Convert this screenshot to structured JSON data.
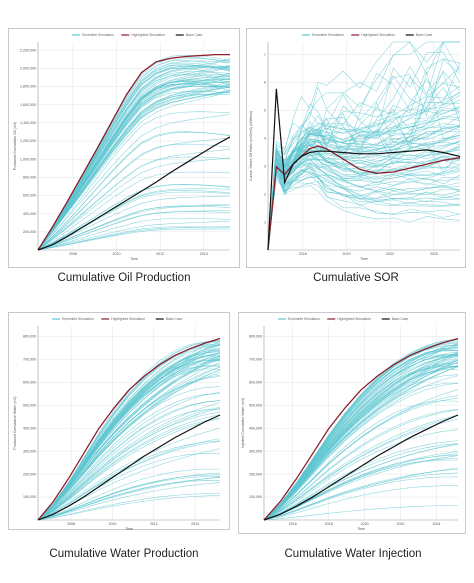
{
  "colors": {
    "ensemble": "#5cc6d0",
    "highlight": "#8b1e2a",
    "base": "#111111",
    "grid": "#e3e3e3",
    "frame": "#bbbbbb"
  },
  "chart_data": [
    {
      "id": "oil",
      "type": "line",
      "title": "Cumulative Oil Production",
      "xlabel": "Time",
      "ylabel": "Produced Cumulative Oil (m3)",
      "x": [
        2000,
        2002,
        2004,
        2006,
        2008,
        2010,
        2012,
        2014,
        2016,
        2018,
        2020,
        2022,
        2024,
        2026
      ],
      "xticks": [
        "2008",
        "2010",
        "2012",
        "2014"
      ],
      "yticks": [
        "200,000",
        "400,000",
        "600,000",
        "800,000",
        "1,000,000",
        "1,200,000",
        "1,400,000",
        "1,600,000",
        "1,800,000",
        "2,000,000",
        "2,200,000"
      ],
      "ylim": [
        0,
        2300000
      ],
      "legend": [
        "Ensemble Simulation",
        "Highlighted Simulation",
        "Base Case"
      ],
      "legend_position": "top-center",
      "series": [
        {
          "role": "ensemble",
          "count": 80,
          "values": [
            0,
            250000,
            520000,
            800000,
            1080000,
            1360000,
            1620000,
            1850000,
            1980000,
            2050000,
            2080000,
            2100000,
            2110000,
            2120000
          ]
        },
        {
          "role": "highlight",
          "values": [
            0,
            260000,
            540000,
            830000,
            1120000,
            1420000,
            1720000,
            1960000,
            2080000,
            2120000,
            2140000,
            2150000,
            2160000,
            2160000
          ]
        },
        {
          "role": "base",
          "values": [
            0,
            60000,
            150000,
            250000,
            350000,
            450000,
            550000,
            650000,
            750000,
            860000,
            960000,
            1060000,
            1160000,
            1250000
          ]
        }
      ]
    },
    {
      "id": "sor",
      "type": "line",
      "title": "Cumulative SOR",
      "xlabel": "Time",
      "ylabel": "Cumul. Steam Oil Ratio (cm3/m3) (Unitless)",
      "x": [
        2003,
        2004,
        2005,
        2006,
        2007,
        2008,
        2009,
        2010,
        2012,
        2014,
        2016,
        2018,
        2020,
        2022,
        2024,
        2026
      ],
      "xticks": [
        "2016",
        "2019",
        "2022",
        "2025"
      ],
      "yticks": [
        "1",
        "2",
        "3",
        "4",
        "5",
        "6",
        "7"
      ],
      "ylim": [
        0,
        8
      ],
      "legend": [
        "Ensemble Simulation",
        "Highlighted Simulation",
        "Base Case"
      ],
      "legend_position": "top-center",
      "series": [
        {
          "role": "ensemble",
          "count": 80,
          "values": [
            0,
            3.4,
            2.8,
            3.2,
            3.5,
            3.7,
            3.6,
            3.4,
            3.2,
            3.1,
            3.15,
            3.25,
            3.35,
            3.45,
            3.55,
            3.65
          ]
        },
        {
          "role": "highlight",
          "values": [
            0,
            3.2,
            2.9,
            3.3,
            3.6,
            3.9,
            4.0,
            3.9,
            3.5,
            3.1,
            2.95,
            3.0,
            3.15,
            3.3,
            3.45,
            3.55
          ]
        },
        {
          "role": "base",
          "values": [
            0,
            6.2,
            2.6,
            3.3,
            3.6,
            3.75,
            3.8,
            3.8,
            3.75,
            3.7,
            3.7,
            3.75,
            3.8,
            3.85,
            3.75,
            3.6
          ]
        }
      ]
    },
    {
      "id": "water-prod",
      "type": "line",
      "title": "Cumulative Water Production",
      "xlabel": "Time",
      "ylabel": "Produced Cumulative Water (m3)",
      "x": [
        2002,
        2004,
        2006,
        2008,
        2010,
        2012,
        2014,
        2016,
        2018,
        2020,
        2022,
        2024,
        2026
      ],
      "xticks": [
        "2008",
        "2010",
        "2012",
        "2014"
      ],
      "yticks": [
        "100,000",
        "200,000",
        "300,000",
        "400,000",
        "500,000",
        "600,000",
        "700,000",
        "800,000"
      ],
      "ylim": [
        0,
        850000
      ],
      "legend": [
        "Ensemble Simulation",
        "Highlighted Simulation",
        "Base Case"
      ],
      "legend_position": "top-left",
      "series": [
        {
          "role": "ensemble",
          "count": 80,
          "values": [
            0,
            70000,
            160000,
            260000,
            360000,
            450000,
            530000,
            600000,
            660000,
            710000,
            750000,
            780000,
            800000
          ]
        },
        {
          "role": "highlight",
          "values": [
            0,
            80000,
            180000,
            290000,
            400000,
            490000,
            570000,
            630000,
            680000,
            720000,
            750000,
            775000,
            795000
          ]
        },
        {
          "role": "base",
          "values": [
            0,
            25000,
            60000,
            100000,
            145000,
            190000,
            235000,
            280000,
            320000,
            360000,
            395000,
            430000,
            460000
          ]
        }
      ]
    },
    {
      "id": "water-inj",
      "type": "line",
      "title": "Cumulative Water Injection",
      "xlabel": "Time",
      "ylabel": "Injected Cumulative Water (m3)",
      "x": [
        2002,
        2004,
        2006,
        2008,
        2010,
        2012,
        2014,
        2016,
        2018,
        2020,
        2022,
        2024,
        2026
      ],
      "xticks": [
        "2016",
        "2018",
        "2020",
        "2022",
        "2024"
      ],
      "yticks": [
        "100,000",
        "200,000",
        "300,000",
        "400,000",
        "500,000",
        "600,000",
        "700,000",
        "800,000"
      ],
      "ylim": [
        0,
        850000
      ],
      "legend": [
        "Ensemble Simulation",
        "Highlighted Simulation",
        "Base Case"
      ],
      "legend_position": "top-left",
      "series": [
        {
          "role": "ensemble",
          "count": 80,
          "values": [
            0,
            70000,
            160000,
            260000,
            360000,
            450000,
            530000,
            600000,
            660000,
            710000,
            750000,
            780000,
            800000
          ]
        },
        {
          "role": "highlight",
          "values": [
            0,
            80000,
            180000,
            290000,
            400000,
            490000,
            570000,
            630000,
            680000,
            720000,
            750000,
            775000,
            795000
          ]
        },
        {
          "role": "base",
          "values": [
            0,
            25000,
            60000,
            100000,
            145000,
            190000,
            235000,
            280000,
            320000,
            360000,
            395000,
            430000,
            460000
          ]
        }
      ]
    }
  ]
}
